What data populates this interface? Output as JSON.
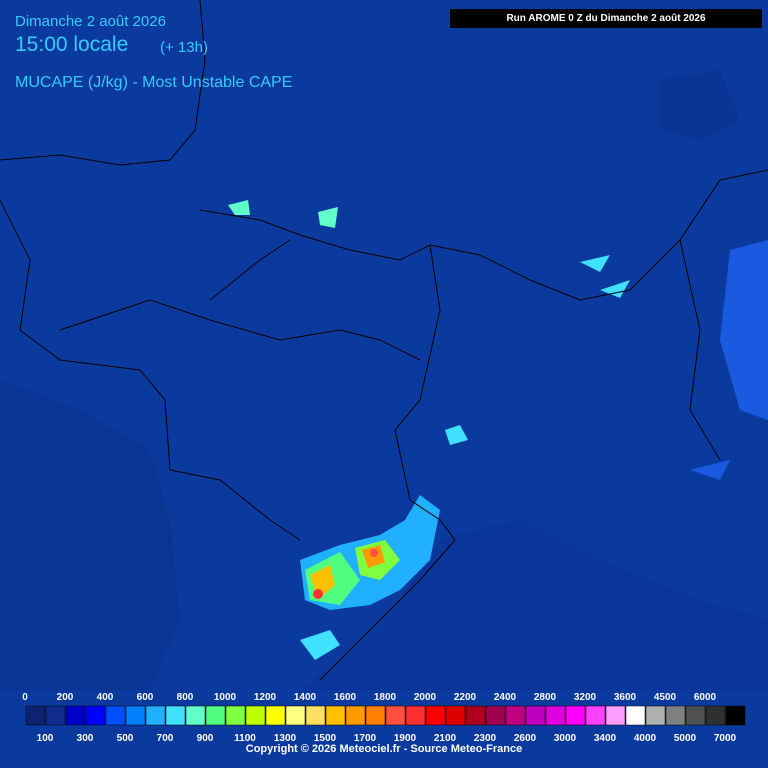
{
  "header": {
    "date": "Dimanche 2 août 2026",
    "time": "15:00 locale",
    "lead": "(+ 13h)",
    "parameter": "MUCAPE (J/kg) - Most Unstable CAPE",
    "run": "Run AROME 0 Z du Dimanche 2 août 2026"
  },
  "legend": {
    "labels": [
      0,
      100,
      200,
      300,
      400,
      500,
      600,
      700,
      800,
      900,
      1000,
      1100,
      1200,
      1300,
      1400,
      1500,
      1600,
      1700,
      1800,
      1900,
      2000,
      2100,
      2200,
      2300,
      2400,
      2600,
      2800,
      3000,
      3200,
      3400,
      3600,
      4000,
      4500,
      5000,
      6000,
      7000
    ],
    "colors": [
      "#0d2270",
      "#102c8c",
      "#0000c8",
      "#0000ff",
      "#0050ff",
      "#0080ff",
      "#20b0ff",
      "#40e0ff",
      "#60ffc8",
      "#50ff80",
      "#80ff40",
      "#c0ff00",
      "#ffff00",
      "#ffff80",
      "#ffe060",
      "#ffc000",
      "#ff9900",
      "#ff7f00",
      "#ff5040",
      "#ff3030",
      "#ff0000",
      "#e00000",
      "#b00020",
      "#a00050",
      "#c00080",
      "#c000c0",
      "#e000e0",
      "#ff00ff",
      "#ff40ff",
      "#ff9cff",
      "#ffffff",
      "#b0b0b0",
      "#808080",
      "#505050",
      "#303030",
      "#000000"
    ]
  },
  "footer": {
    "copyright": "Copyright © 2026 Meteociel.fr - Source Meteo-France"
  }
}
